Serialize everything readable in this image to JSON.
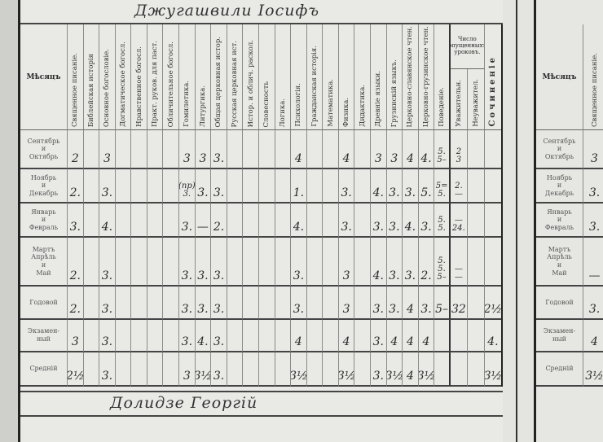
{
  "student_name": "Джугашвили Іосифъ",
  "next_student_name": "Долидзе Георгій",
  "month_header": "Мѣсяцъ",
  "subjects": [
    "Священное писаніе.",
    "Библейская исторія",
    "Основное богословіе.",
    "Догматическое богосл.",
    "Нравственное богосл.",
    "Практ. руков. для паст.",
    "Обличительное богосл.",
    "Гомилетика.",
    "Литургика.",
    "Общая церковная истор.",
    "Русская церковная ист.",
    "Истор. и облич. раскол.",
    "Словесность",
    "Логика.",
    "Психологія.",
    "Гражданская исторія.",
    "Математика.",
    "Физика.",
    "Дидактика.",
    "Древніе языки.",
    "Грузинскій языкъ.",
    "Церковно-славянское чтен.",
    "Церковно-грузинское чтен.",
    "Поведеніе."
  ],
  "absences_header": "Число опущенныхъ уроковъ.",
  "absences_cols": [
    "Уважительн.",
    "Неуважител."
  ],
  "essay_header": "Сочиненіе",
  "rows": [
    {
      "label": "Сентябрь\nи\nОктябрь",
      "grades": [
        "2",
        "",
        "3",
        "",
        "",
        "",
        "",
        "3",
        "3",
        "3.",
        "",
        "",
        "",
        "",
        "4",
        "",
        "",
        "4",
        "",
        "3",
        "3",
        "4",
        "4.",
        "5.\n5–",
        "2\n3",
        "",
        ""
      ]
    },
    {
      "label": "Ноябрь\nи\nДекабрь",
      "grades": [
        "2.",
        "",
        "3.",
        "",
        "",
        "",
        "",
        "(пр)\n3.",
        "3.",
        "3.",
        "",
        "",
        "",
        "",
        "1.",
        "",
        "",
        "3.",
        "",
        "4.",
        "3.",
        "3.",
        "5.",
        "5=\n5.",
        "2.\n—",
        "",
        ""
      ]
    },
    {
      "label": "Январь\nи\nФевраль",
      "grades": [
        "3.",
        "",
        "4.",
        "",
        "",
        "",
        "",
        "3.",
        "—",
        "2.",
        "",
        "",
        "",
        "",
        "4.",
        "",
        "",
        "3.",
        "",
        "3.",
        "3.",
        "4.",
        "3.",
        "5.\n5.",
        "—\n24.",
        "",
        ""
      ]
    },
    {
      "label": "Мартъ\nАпрѣль\nи\nМай",
      "grades": [
        "2.",
        "",
        "3.",
        "",
        "",
        "",
        "",
        "3.",
        "3.",
        "3.",
        "",
        "",
        "",
        "",
        "3.",
        "",
        "",
        "3",
        "",
        "4.",
        "3.",
        "3.",
        "2.",
        "5.\n5.\n5–",
        "—\n—",
        "",
        ""
      ]
    },
    {
      "label": "Годовой",
      "grades": [
        "2.",
        "",
        "3.",
        "",
        "",
        "",
        "",
        "3.",
        "3.",
        "3.",
        "",
        "",
        "",
        "",
        "3.",
        "",
        "",
        "3",
        "",
        "3.",
        "3.",
        "4",
        "3.",
        "5–",
        "32",
        "",
        "2½"
      ]
    },
    {
      "label": "Экзамен-\nный",
      "grades": [
        "3",
        "",
        "3.",
        "",
        "",
        "",
        "",
        "3.",
        "4.",
        "3.",
        "",
        "",
        "",
        "",
        "4",
        "",
        "",
        "4",
        "",
        "3.",
        "4",
        "4",
        "4",
        "",
        "",
        "",
        "4."
      ]
    },
    {
      "label": "Средній",
      "grades": [
        "2½",
        "",
        "3.",
        "",
        "",
        "",
        "",
        "3",
        "3½",
        "3.",
        "",
        "",
        "",
        "",
        "3½",
        "",
        "",
        "3½",
        "",
        "3.",
        "3½",
        "4",
        "3½",
        "",
        "",
        "",
        "3½"
      ]
    }
  ],
  "next_sheet": {
    "month_header": "Мѣсяцъ",
    "subject": "Священное писаніе.",
    "rows": [
      {
        "label": "Сентябрь\nи\nОктябрь",
        "grade": "3"
      },
      {
        "label": "Ноябрь\nи\nДекабрь",
        "grade": "3."
      },
      {
        "label": "Январь\nи\nФевраль",
        "grade": "3."
      },
      {
        "label": "Мартъ\nАпрѣль\nи\nМай",
        "grade": "—"
      },
      {
        "label": "Годовой",
        "grade": "3."
      },
      {
        "label": "Экзамен-\nный",
        "grade": "4"
      },
      {
        "label": "Средній",
        "grade": "3½"
      }
    ]
  }
}
